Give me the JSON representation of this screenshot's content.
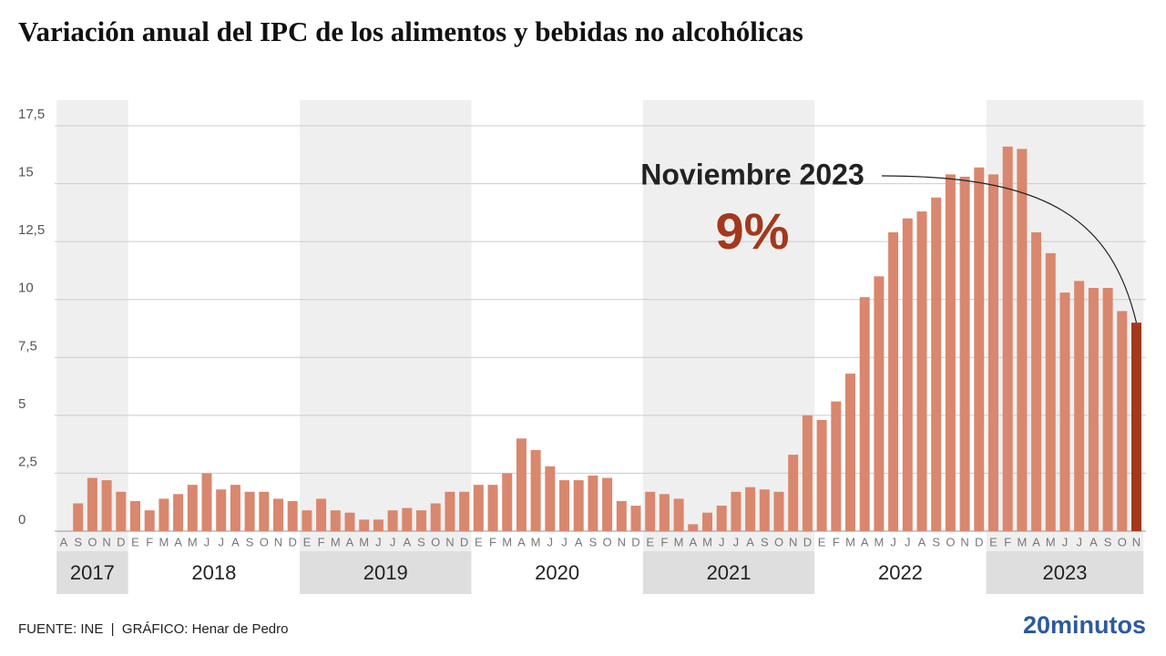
{
  "chart_data": {
    "type": "bar",
    "title": "Variación anual del IPC de los alimentos y bebidas no alcohólicas",
    "categories": [
      "A",
      "S",
      "O",
      "N",
      "D",
      "E",
      "F",
      "M",
      "A",
      "M",
      "J",
      "J",
      "A",
      "S",
      "O",
      "N",
      "D",
      "E",
      "F",
      "M",
      "A",
      "M",
      "J",
      "J",
      "A",
      "S",
      "O",
      "N",
      "D",
      "E",
      "F",
      "M",
      "A",
      "M",
      "J",
      "J",
      "A",
      "S",
      "O",
      "N",
      "D",
      "E",
      "F",
      "M",
      "A",
      "M",
      "J",
      "J",
      "A",
      "S",
      "O",
      "N",
      "D",
      "E",
      "F",
      "M",
      "A",
      "M",
      "J",
      "J",
      "A",
      "S",
      "O",
      "N",
      "D",
      "E",
      "F",
      "M",
      "A",
      "M",
      "J",
      "J",
      "A",
      "S",
      "O",
      "N"
    ],
    "values": [
      null,
      1.2,
      2.3,
      2.2,
      1.7,
      1.3,
      0.9,
      1.4,
      1.6,
      2.0,
      2.5,
      1.8,
      2.0,
      1.7,
      1.7,
      1.4,
      1.3,
      0.9,
      1.4,
      0.9,
      0.8,
      0.5,
      0.5,
      0.9,
      1.0,
      0.9,
      1.2,
      1.7,
      1.7,
      2.0,
      2.0,
      2.5,
      4.0,
      3.5,
      2.8,
      2.2,
      2.2,
      2.4,
      2.3,
      1.3,
      1.1,
      1.7,
      1.6,
      1.4,
      0.3,
      0.8,
      1.1,
      1.7,
      1.9,
      1.8,
      1.7,
      3.3,
      5.0,
      4.8,
      5.6,
      6.8,
      10.1,
      11.0,
      12.9,
      13.5,
      13.8,
      14.4,
      15.4,
      15.3,
      15.7,
      15.4,
      16.6,
      16.5,
      12.9,
      12.0,
      10.3,
      10.8,
      10.5,
      10.5,
      9.5,
      9.0
    ],
    "years": [
      "2017",
      "2018",
      "2019",
      "2020",
      "2021",
      "2022",
      "2023"
    ],
    "color": "#d9876e",
    "highlight_color": "#a3381c",
    "ylim": [
      0,
      17.5
    ],
    "yticks": [
      0,
      {
        "value": 2.5,
        "label": "2,5"
      },
      5,
      {
        "value": 7.5,
        "label": "7,5"
      },
      10,
      {
        "value": 12.5,
        "label": "12,5"
      },
      15,
      {
        "value": 17.5,
        "label": "17,5"
      }
    ],
    "grid": true,
    "annotation": {
      "label": "Noviembre 2023",
      "value_label": "9%"
    },
    "source": "FUENTE: INE  |  GRÁFICO: Henar de Pedro",
    "logo": "20minutos"
  }
}
